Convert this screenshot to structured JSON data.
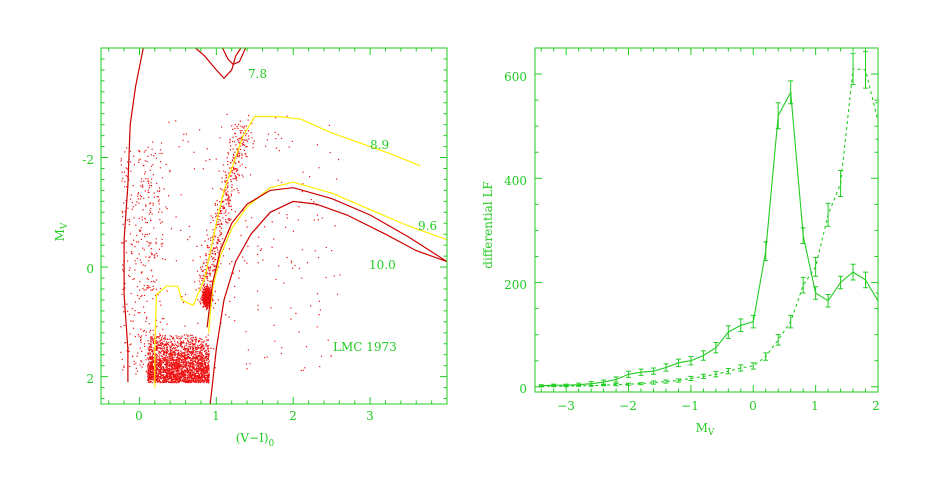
{
  "colors": {
    "axes": "#22cc22",
    "points": "#ee1111",
    "red_curve": "#cc0000",
    "yellow_curve": "#ffee00",
    "lf_line": "#22cc22"
  },
  "chart_data": [
    {
      "type": "scatter",
      "title": "",
      "annotation": "LMC 1973",
      "xlabel": "(V−I)",
      "xlabel_sub": "0",
      "ylabel": "M",
      "ylabel_sub": "V",
      "xlim": [
        -0.5,
        4.0
      ],
      "ylim": [
        2.5,
        -4.0
      ],
      "y_inverted": true,
      "xticks": [
        0,
        1,
        2,
        3
      ],
      "yticks": [
        -2,
        0,
        2
      ],
      "grid": false,
      "point_clouds": [
        {
          "name": "",
          "description_region": "main sequence blob",
          "x_range": [
            0.1,
            0.9
          ],
          "y_range": [
            1.2,
            2.1
          ],
          "approx_count": 2200
        },
        {
          "name": "",
          "description_region": "red clump",
          "x_range": [
            0.75,
            1.0
          ],
          "y_range": [
            0.2,
            0.9
          ],
          "approx_count": 700
        },
        {
          "name": "",
          "description_region": "blue plume",
          "x_range": [
            -0.25,
            0.3
          ],
          "y_range": [
            -2.2,
            2.0
          ],
          "approx_count": 350
        },
        {
          "name": "",
          "description_region": "giant branch",
          "x_range": [
            0.8,
            1.6
          ],
          "y_range": [
            -2.6,
            0.5
          ],
          "approx_count": 450
        },
        {
          "name": "",
          "description_region": "field scatter",
          "x_range": [
            0.0,
            2.6
          ],
          "y_range": [
            -2.8,
            2.0
          ],
          "approx_count": 250
        }
      ],
      "isochrones": [
        {
          "label": "7.8",
          "color": "red",
          "segments": [
            [
              [
                -0.15,
                2.1
              ],
              [
                -0.15,
                1.5
              ],
              [
                -0.2,
                0.5
              ],
              [
                -0.2,
                -0.5
              ],
              [
                -0.15,
                -1.5
              ],
              [
                -0.12,
                -2.6
              ],
              [
                -0.05,
                -3.3
              ],
              [
                0.05,
                -4.0
              ]
            ],
            [
              [
                0.73,
                -4.0
              ],
              [
                0.85,
                -3.85
              ],
              [
                1.0,
                -3.6
              ],
              [
                1.1,
                -3.45
              ],
              [
                1.2,
                -3.6
              ],
              [
                1.25,
                -3.85
              ],
              [
                1.32,
                -4.0
              ]
            ],
            [
              [
                1.08,
                -4.0
              ],
              [
                1.15,
                -3.8
              ],
              [
                1.22,
                -3.7
              ],
              [
                1.3,
                -3.75
              ],
              [
                1.38,
                -4.0
              ]
            ]
          ]
        },
        {
          "label": "8.9",
          "color": "yellow",
          "segments": [
            [
              [
                0.2,
                2.2
              ],
              [
                0.2,
                1.5
              ],
              [
                0.22,
                0.5
              ],
              [
                0.35,
                0.35
              ],
              [
                0.5,
                0.35
              ],
              [
                0.55,
                0.6
              ],
              [
                0.7,
                0.7
              ],
              [
                0.85,
                0.2
              ],
              [
                1.0,
                -0.8
              ],
              [
                1.1,
                -1.4
              ],
              [
                1.2,
                -1.8
              ],
              [
                1.35,
                -2.4
              ],
              [
                1.5,
                -2.75
              ],
              [
                1.8,
                -2.75
              ],
              [
                2.1,
                -2.7
              ],
              [
                2.5,
                -2.45
              ],
              [
                2.9,
                -2.25
              ],
              [
                3.3,
                -2.05
              ],
              [
                3.65,
                -1.85
              ]
            ]
          ]
        },
        {
          "label": "9.6",
          "color": "yellow",
          "segments": [
            [
              [
                0.9,
                1.2
              ],
              [
                0.95,
                0.4
              ],
              [
                1.05,
                -0.2
              ],
              [
                1.2,
                -0.7
              ],
              [
                1.4,
                -1.1
              ],
              [
                1.7,
                -1.45
              ],
              [
                2.0,
                -1.55
              ],
              [
                2.5,
                -1.35
              ],
              [
                3.0,
                -1.05
              ],
              [
                3.5,
                -0.75
              ],
              [
                4.0,
                -0.5
              ]
            ]
          ]
        },
        {
          "label": "10.0",
          "color": "red",
          "segments": [
            [
              [
                0.88,
                1.1
              ],
              [
                0.95,
                0.3
              ],
              [
                1.05,
                -0.3
              ],
              [
                1.2,
                -0.8
              ],
              [
                1.4,
                -1.15
              ],
              [
                1.7,
                -1.4
              ],
              [
                2.0,
                -1.45
              ],
              [
                2.5,
                -1.25
              ],
              [
                3.0,
                -0.95
              ],
              [
                3.5,
                -0.55
              ],
              [
                4.0,
                -0.1
              ]
            ],
            [
              [
                0.92,
                2.5
              ],
              [
                1.0,
                1.5
              ],
              [
                1.1,
                0.6
              ],
              [
                1.25,
                -0.1
              ],
              [
                1.45,
                -0.6
              ],
              [
                1.7,
                -1.0
              ],
              [
                2.0,
                -1.2
              ],
              [
                2.3,
                -1.15
              ],
              [
                2.7,
                -0.95
              ],
              [
                3.2,
                -0.6
              ],
              [
                3.6,
                -0.3
              ],
              [
                4.0,
                -0.1
              ]
            ]
          ]
        }
      ]
    },
    {
      "type": "line",
      "title": "",
      "xlabel": "M",
      "xlabel_sub": "V",
      "ylabel": "differential LF",
      "xlim": [
        -3.5,
        2.0
      ],
      "ylim": [
        -10,
        650
      ],
      "xticks": [
        -3,
        -2,
        -1,
        0,
        1,
        2
      ],
      "yticks": [
        0,
        200,
        400,
        600
      ],
      "grid": false,
      "series": [
        {
          "name": "",
          "style": "solid",
          "x": [
            -3.4,
            -3.2,
            -3.0,
            -2.8,
            -2.6,
            -2.4,
            -2.2,
            -2.0,
            -1.8,
            -1.6,
            -1.4,
            -1.2,
            -1.0,
            -0.8,
            -0.6,
            -0.4,
            -0.2,
            0.0,
            0.2,
            0.4,
            0.6,
            0.8,
            1.0,
            1.2,
            1.4,
            1.6,
            1.8,
            2.0
          ],
          "y": [
            2,
            3,
            3,
            4,
            6,
            9,
            14,
            24,
            28,
            30,
            37,
            46,
            50,
            60,
            75,
            105,
            118,
            125,
            260,
            520,
            565,
            290,
            180,
            165,
            200,
            220,
            205,
            165
          ],
          "err": [
            2,
            2,
            2,
            3,
            4,
            4,
            5,
            6,
            6,
            6,
            7,
            7,
            8,
            9,
            10,
            12,
            12,
            12,
            18,
            25,
            22,
            15,
            12,
            12,
            12,
            15,
            15,
            15
          ]
        },
        {
          "name": "",
          "style": "dotted",
          "x": [
            -3.4,
            -3.2,
            -3.0,
            -2.8,
            -2.6,
            -2.4,
            -2.2,
            -2.0,
            -1.8,
            -1.6,
            -1.4,
            -1.2,
            -1.0,
            -0.8,
            -0.6,
            -0.4,
            -0.2,
            0.0,
            0.2,
            0.4,
            0.6,
            0.8,
            1.0,
            1.2,
            1.4,
            1.6,
            1.8,
            2.0
          ],
          "y": [
            1,
            1,
            1,
            2,
            2,
            3,
            4,
            5,
            6,
            8,
            10,
            12,
            16,
            20,
            24,
            30,
            36,
            40,
            58,
            90,
            125,
            195,
            230,
            330,
            390,
            610,
            608,
            510
          ],
          "err": [
            1,
            1,
            1,
            1,
            1,
            1,
            2,
            2,
            2,
            3,
            3,
            3,
            4,
            4,
            5,
            5,
            6,
            6,
            7,
            10,
            12,
            15,
            18,
            22,
            25,
            30,
            35,
            35
          ]
        }
      ]
    }
  ],
  "panel1": {
    "xtick_labels": [
      "0",
      "1",
      "2",
      "3"
    ],
    "ytick_labels": [
      "-2",
      "0",
      "2"
    ],
    "iso_labels": [
      "7.8",
      "8.9",
      "9.6",
      "10.0"
    ],
    "annotation": "LMC 1973",
    "xlabel_main": "(V−I)",
    "xlabel_sub": "0",
    "ylabel_main": "M",
    "ylabel_sub": "V"
  },
  "panel2": {
    "xtick_labels": [
      "−3",
      "−2",
      "−1",
      "0",
      "1",
      "2"
    ],
    "ytick_labels": [
      "0",
      "200",
      "400",
      "600"
    ],
    "xlabel_main": "M",
    "xlabel_sub": "V",
    "ylabel": "differential LF"
  }
}
